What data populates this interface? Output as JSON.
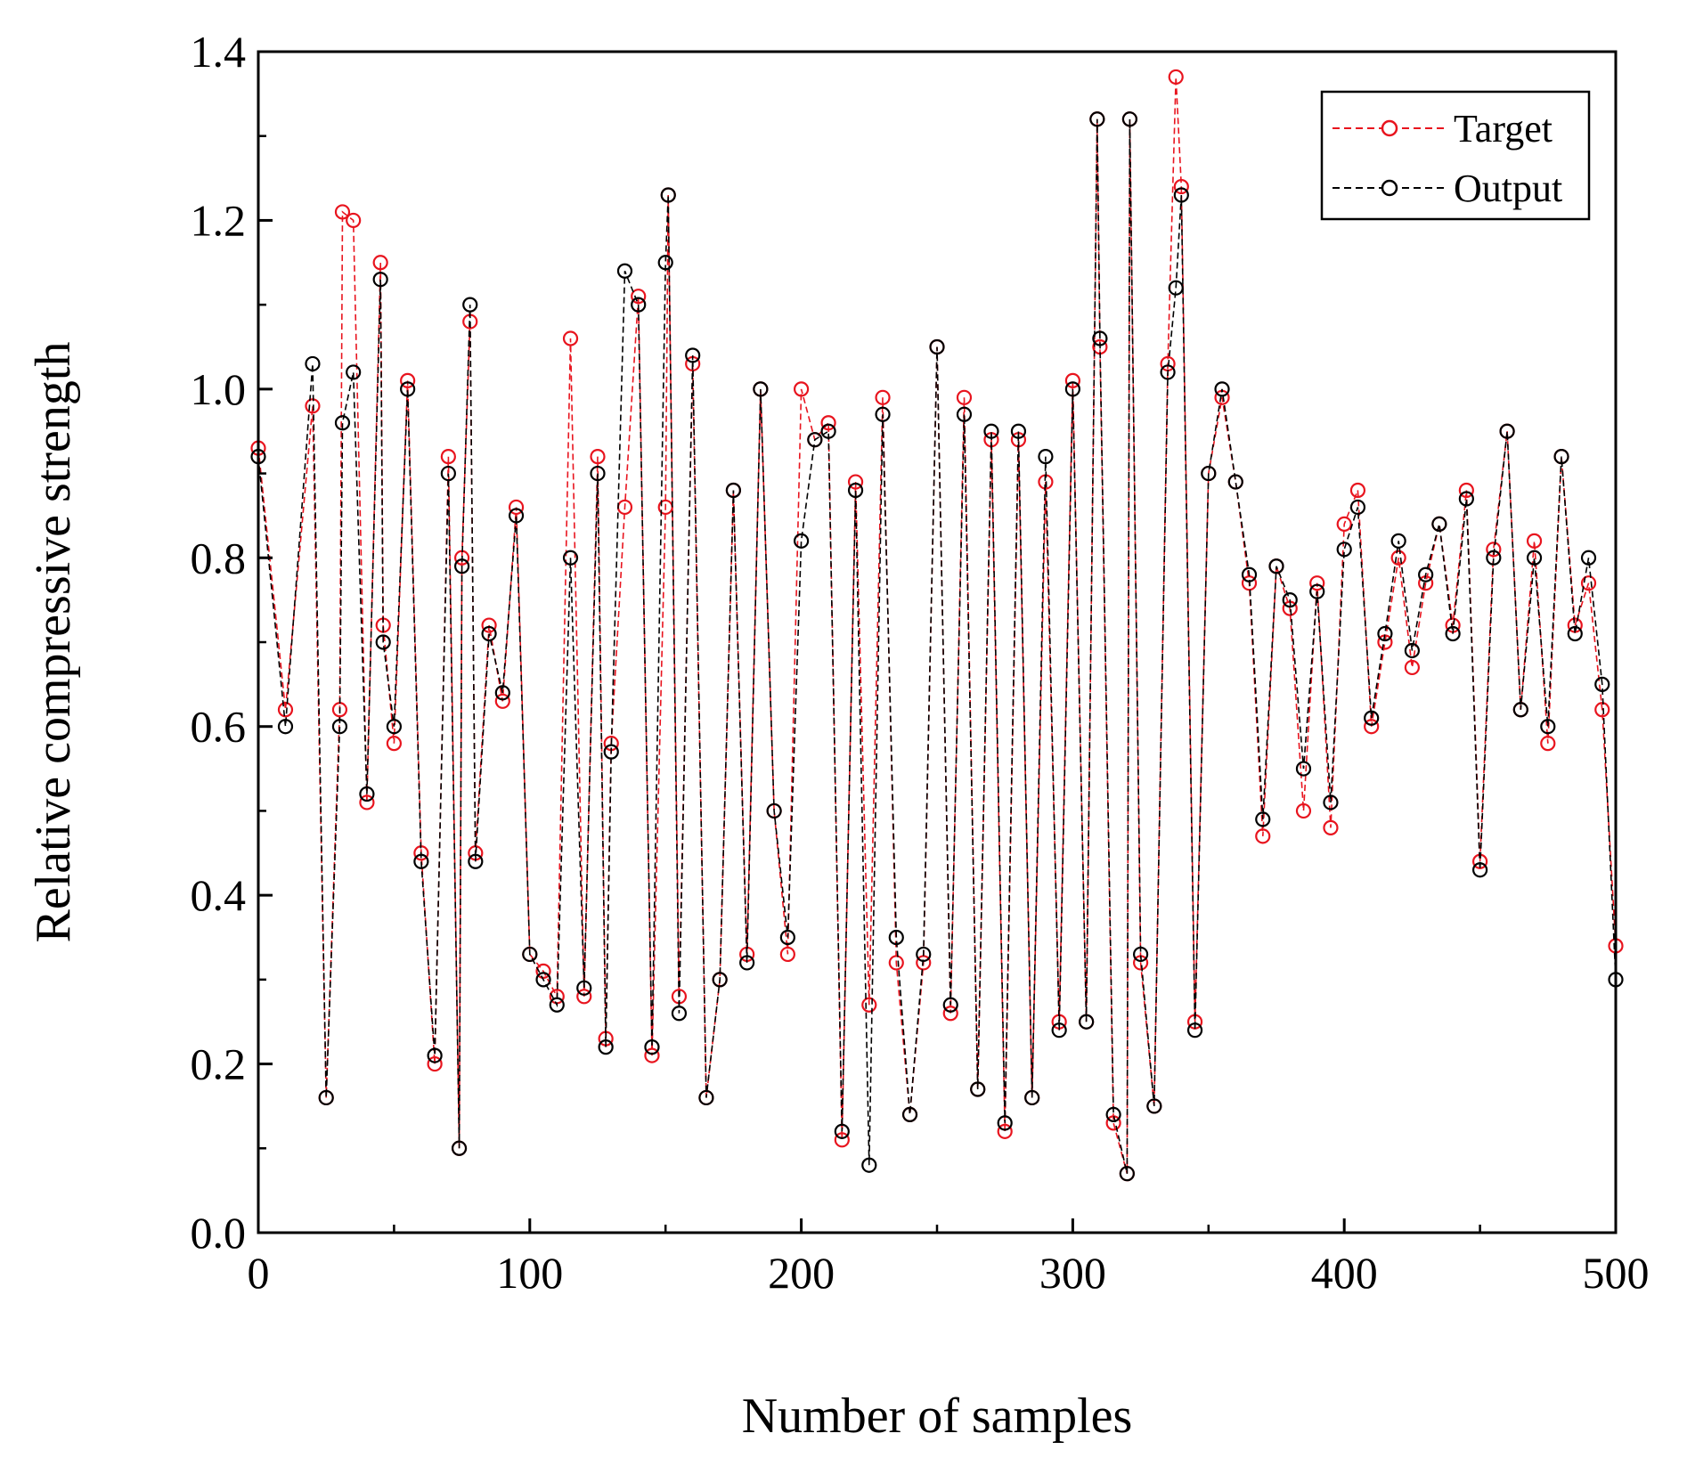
{
  "chart_data": {
    "type": "line",
    "title": "",
    "xlabel": "Number of samples",
    "ylabel": "Relative compressive strength",
    "xlim": [
      0,
      500
    ],
    "ylim": [
      0.0,
      1.4
    ],
    "xticks": [
      0,
      100,
      200,
      300,
      400,
      500
    ],
    "xtick_labels": [
      "0",
      "100",
      "200",
      "300",
      "400",
      "500"
    ],
    "yticks": [
      0.0,
      0.2,
      0.4,
      0.6,
      0.8,
      1.0,
      1.2,
      1.4
    ],
    "ytick_labels": [
      "0.0",
      "0.2",
      "0.4",
      "0.6",
      "0.8",
      "1.0",
      "1.2",
      "1.4"
    ],
    "grid": false,
    "legend_position": "top-right",
    "series": [
      {
        "name": "Target",
        "color": "#e8141e",
        "line_style": "dashed",
        "marker": "open-circle",
        "x": [
          0,
          10,
          20,
          25,
          30,
          31,
          35,
          40,
          45,
          46,
          50,
          55,
          60,
          65,
          70,
          74,
          75,
          78,
          80,
          85,
          90,
          95,
          100,
          105,
          110,
          115,
          120,
          125,
          128,
          130,
          135,
          140,
          145,
          150,
          151,
          155,
          160,
          165,
          170,
          175,
          180,
          185,
          190,
          195,
          200,
          205,
          210,
          215,
          220,
          225,
          230,
          235,
          240,
          245,
          250,
          255,
          260,
          265,
          270,
          275,
          280,
          285,
          290,
          295,
          300,
          305,
          309,
          310,
          315,
          320,
          321,
          325,
          330,
          335,
          338,
          340,
          345,
          350,
          355,
          360,
          365,
          370,
          375,
          380,
          385,
          390,
          395,
          400,
          405,
          410,
          415,
          420,
          425,
          430,
          435,
          440,
          445,
          450,
          455,
          460,
          465,
          470,
          475,
          480,
          485,
          490,
          495,
          500
        ],
        "y": [
          0.93,
          0.62,
          0.98,
          0.16,
          0.62,
          1.21,
          1.2,
          0.51,
          1.15,
          0.72,
          0.58,
          1.01,
          0.45,
          0.2,
          0.92,
          0.1,
          0.8,
          1.08,
          0.45,
          0.72,
          0.63,
          0.86,
          0.33,
          0.31,
          0.28,
          1.06,
          0.28,
          0.92,
          0.23,
          0.58,
          0.86,
          1.11,
          0.21,
          0.86,
          1.23,
          0.28,
          1.03,
          0.16,
          0.3,
          0.88,
          0.33,
          1.0,
          0.5,
          0.33,
          1.0,
          0.94,
          0.96,
          0.11,
          0.89,
          0.27,
          0.99,
          0.32,
          0.14,
          0.32,
          1.05,
          0.26,
          0.99,
          0.17,
          0.94,
          0.12,
          0.94,
          0.16,
          0.89,
          0.25,
          1.01,
          0.25,
          1.32,
          1.05,
          0.13,
          0.07,
          1.32,
          0.32,
          0.15,
          1.03,
          1.37,
          1.24,
          0.25,
          0.9,
          0.99,
          0.89,
          0.77,
          0.47,
          0.79,
          0.74,
          0.5,
          0.77,
          0.48,
          0.84,
          0.88,
          0.6,
          0.7,
          0.8,
          0.67,
          0.77,
          0.84,
          0.72,
          0.88,
          0.44,
          0.81,
          0.95,
          0.62,
          0.82,
          0.58,
          0.92,
          0.72,
          0.77,
          0.62,
          0.34
        ]
      },
      {
        "name": "Output",
        "color": "#000000",
        "line_style": "dashed",
        "marker": "open-circle",
        "x": [
          0,
          10,
          20,
          25,
          30,
          31,
          35,
          40,
          45,
          46,
          50,
          55,
          60,
          65,
          70,
          74,
          75,
          78,
          80,
          85,
          90,
          95,
          100,
          105,
          110,
          115,
          120,
          125,
          128,
          130,
          135,
          140,
          145,
          150,
          151,
          155,
          160,
          165,
          170,
          175,
          180,
          185,
          190,
          195,
          200,
          205,
          210,
          215,
          220,
          225,
          230,
          235,
          240,
          245,
          250,
          255,
          260,
          265,
          270,
          275,
          280,
          285,
          290,
          295,
          300,
          305,
          309,
          310,
          315,
          320,
          321,
          325,
          330,
          335,
          338,
          340,
          345,
          350,
          355,
          360,
          365,
          370,
          375,
          380,
          385,
          390,
          395,
          400,
          405,
          410,
          415,
          420,
          425,
          430,
          435,
          440,
          445,
          450,
          455,
          460,
          465,
          470,
          475,
          480,
          485,
          490,
          495,
          500
        ],
        "y": [
          0.92,
          0.6,
          1.03,
          0.16,
          0.6,
          0.96,
          1.02,
          0.52,
          1.13,
          0.7,
          0.6,
          1.0,
          0.44,
          0.21,
          0.9,
          0.1,
          0.79,
          1.1,
          0.44,
          0.71,
          0.64,
          0.85,
          0.33,
          0.3,
          0.27,
          0.8,
          0.29,
          0.9,
          0.22,
          0.57,
          1.14,
          1.1,
          0.22,
          1.15,
          1.23,
          0.26,
          1.04,
          0.16,
          0.3,
          0.88,
          0.32,
          1.0,
          0.5,
          0.35,
          0.82,
          0.94,
          0.95,
          0.12,
          0.88,
          0.08,
          0.97,
          0.35,
          0.14,
          0.33,
          1.05,
          0.27,
          0.97,
          0.17,
          0.95,
          0.13,
          0.95,
          0.16,
          0.92,
          0.24,
          1.0,
          0.25,
          1.32,
          1.06,
          0.14,
          0.07,
          1.32,
          0.33,
          0.15,
          1.02,
          1.12,
          1.23,
          0.24,
          0.9,
          1.0,
          0.89,
          0.78,
          0.49,
          0.79,
          0.75,
          0.55,
          0.76,
          0.51,
          0.81,
          0.86,
          0.61,
          0.71,
          0.82,
          0.69,
          0.78,
          0.84,
          0.71,
          0.87,
          0.43,
          0.8,
          0.95,
          0.62,
          0.8,
          0.6,
          0.92,
          0.71,
          0.8,
          0.65,
          0.3
        ]
      }
    ]
  }
}
